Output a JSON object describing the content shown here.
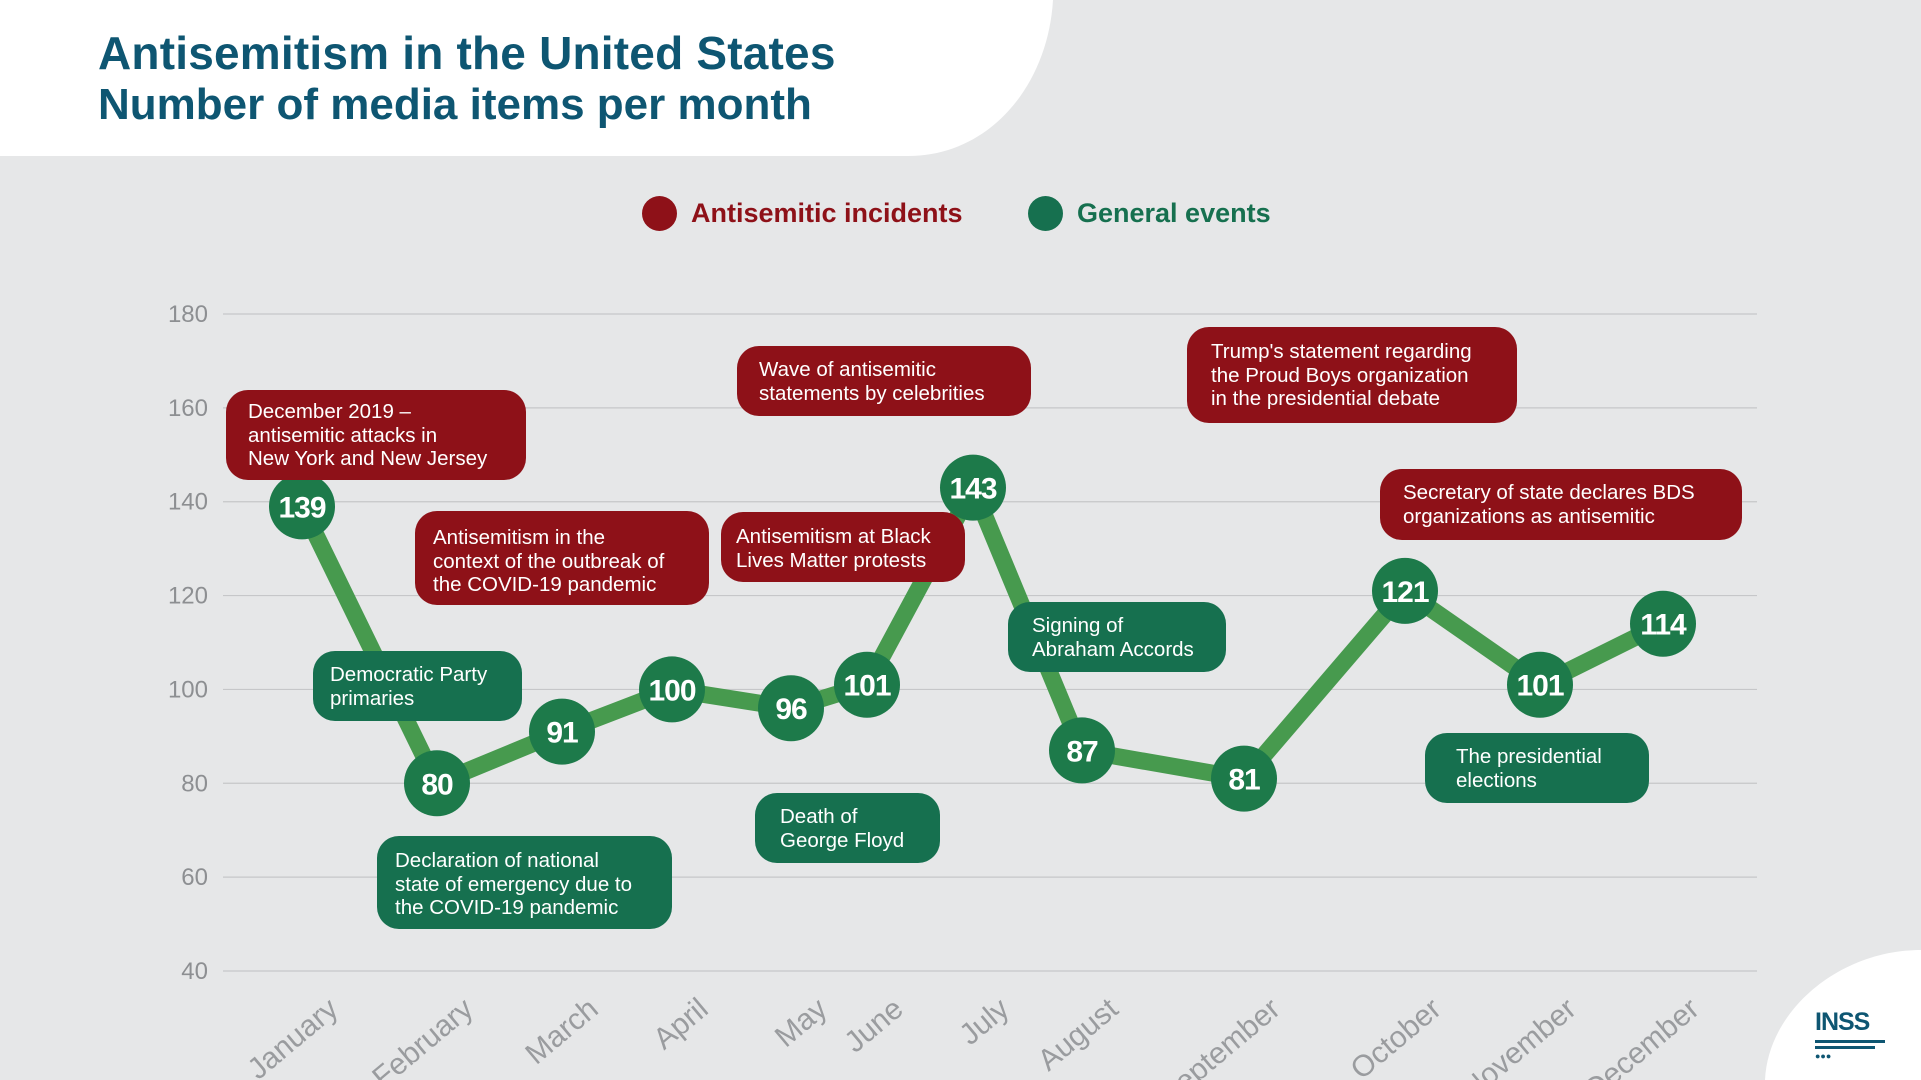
{
  "header": {
    "title": "Antisemitism in the United States",
    "subtitle": "Number of media items per month"
  },
  "legend": [
    {
      "label": "Antisemitic incidents",
      "color": "#8e1118"
    },
    {
      "label": "General events",
      "color": "#16704f"
    }
  ],
  "colors": {
    "line": "#479a4e",
    "point": "#1d7a4a",
    "grid": "#c6c7c9",
    "tick": "#8d8f92",
    "background": "#e6e7e8",
    "title": "#0e5672"
  },
  "chart_data": {
    "type": "line",
    "title": "Antisemitism in the United States",
    "subtitle": "Number of media items per month",
    "categories": [
      "January",
      "February",
      "March",
      "April",
      "May",
      "June",
      "July",
      "August",
      "September",
      "October",
      "November",
      "December"
    ],
    "series": [
      {
        "values": [
          139,
          80,
          91,
          100,
          96,
          101,
          143,
          87,
          81,
          121,
          101,
          114
        ]
      }
    ],
    "ylim": [
      40,
      180
    ],
    "yticks": [
      40,
      60,
      80,
      100,
      120,
      140,
      160,
      180
    ],
    "grid": true,
    "legend_position": "top-center",
    "data_labels": [
      "139",
      "80",
      "91",
      "100",
      "96",
      "101",
      "143",
      "87",
      "81",
      "121",
      "101",
      "114"
    ]
  },
  "annotations": [
    {
      "text": "December 2019 –\nantisemitic attacks in\nNew York and New Jersey",
      "category": "antisemitic"
    },
    {
      "text": "Antisemitism in the\ncontext of the outbreak of\nthe COVID-19 pandemic",
      "category": "antisemitic"
    },
    {
      "text": "Wave of antisemitic\nstatements by celebrities",
      "category": "antisemitic"
    },
    {
      "text": "Antisemitism at Black\nLives Matter protests",
      "category": "antisemitic"
    },
    {
      "text": "Trump's statement regarding\nthe Proud Boys organization\nin the presidential debate",
      "category": "antisemitic"
    },
    {
      "text": "Secretary of state declares BDS\norganizations as antisemitic",
      "category": "antisemitic"
    },
    {
      "text": "Democratic Party\nprimaries",
      "category": "general"
    },
    {
      "text": "Declaration of national\nstate of emergency due to\nthe COVID-19 pandemic",
      "category": "general"
    },
    {
      "text": "Death of\nGeorge Floyd",
      "category": "general"
    },
    {
      "text": "Signing of\nAbraham Accords",
      "category": "general"
    },
    {
      "text": "The presidential\nelections",
      "category": "general"
    }
  ],
  "logo": {
    "text": "INSS"
  }
}
